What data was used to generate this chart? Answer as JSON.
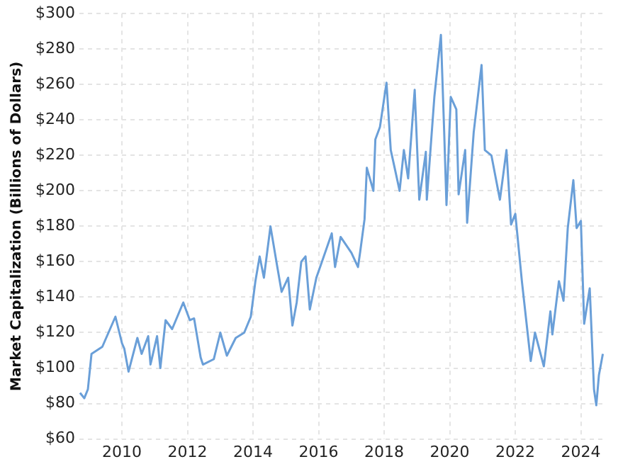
{
  "chart_data": {
    "type": "line",
    "ylabel": "Market Capitalization (Billions of Dollars)",
    "xlim": [
      2008.7,
      2024.7
    ],
    "xticks": [
      2010,
      2012,
      2014,
      2016,
      2018,
      2020,
      2022,
      2024
    ],
    "ylim": [
      60,
      300
    ],
    "yticks": [
      {
        "value": 60,
        "label": "$60"
      },
      {
        "value": 80,
        "label": "$80"
      },
      {
        "value": 100,
        "label": "$100"
      },
      {
        "value": 120,
        "label": "$120"
      },
      {
        "value": 140,
        "label": "$140"
      },
      {
        "value": 160,
        "label": "$160"
      },
      {
        "value": 180,
        "label": "$180"
      },
      {
        "value": 200,
        "label": "$200"
      },
      {
        "value": 220,
        "label": "$220"
      },
      {
        "value": 240,
        "label": "$240"
      },
      {
        "value": 260,
        "label": "$260"
      },
      {
        "value": 280,
        "label": "$280"
      },
      {
        "value": 300,
        "label": "$300"
      }
    ],
    "grid": true,
    "legend": false,
    "marker": "none",
    "line_style": "solid",
    "series": [
      {
        "color": "#6a9fd8",
        "x": [
          2008.72,
          2008.85,
          2008.96,
          2009.07,
          2009.4,
          2009.8,
          2010.0,
          2010.07,
          2010.2,
          2010.47,
          2010.6,
          2010.8,
          2010.87,
          2011.07,
          2011.17,
          2011.33,
          2011.53,
          2011.87,
          2012.07,
          2012.2,
          2012.4,
          2012.47,
          2012.8,
          2013.0,
          2013.2,
          2013.47,
          2013.73,
          2013.93,
          2014.07,
          2014.2,
          2014.33,
          2014.53,
          2014.73,
          2014.87,
          2015.07,
          2015.2,
          2015.33,
          2015.47,
          2015.6,
          2015.73,
          2015.93,
          2016.1,
          2016.4,
          2016.5,
          2016.67,
          2017.0,
          2017.2,
          2017.27,
          2017.4,
          2017.47,
          2017.67,
          2017.73,
          2017.87,
          2018.07,
          2018.2,
          2018.33,
          2018.47,
          2018.6,
          2018.73,
          2018.93,
          2019.07,
          2019.27,
          2019.3,
          2019.53,
          2019.73,
          2019.83,
          2019.9,
          2020.03,
          2020.2,
          2020.27,
          2020.47,
          2020.53,
          2020.73,
          2020.97,
          2021.07,
          2021.27,
          2021.53,
          2021.73,
          2021.87,
          2022.0,
          2022.2,
          2022.47,
          2022.6,
          2022.87,
          2023.07,
          2023.13,
          2023.33,
          2023.47,
          2023.6,
          2023.77,
          2023.87,
          2024.0,
          2024.1,
          2024.27,
          2024.4,
          2024.47,
          2024.55,
          2024.67
        ],
        "values": [
          86,
          83,
          88,
          108,
          112,
          129,
          114,
          111,
          98,
          117,
          108,
          118,
          102,
          118,
          100,
          127,
          122,
          137,
          127,
          128,
          106,
          102,
          105,
          120,
          107,
          117,
          120,
          129,
          149,
          163,
          151,
          180,
          158,
          143,
          151,
          124,
          137,
          160,
          163,
          133,
          151,
          160,
          176,
          157,
          174,
          165,
          157,
          166,
          184,
          213,
          200,
          229,
          236,
          261,
          223,
          212,
          200,
          223,
          207,
          257,
          195,
          222,
          195,
          253,
          288,
          233,
          192,
          253,
          246,
          198,
          223,
          182,
          233,
          271,
          223,
          220,
          195,
          223,
          181,
          187,
          149,
          104,
          120,
          101,
          132,
          119,
          149,
          138,
          179,
          206,
          179,
          183,
          125,
          145,
          88,
          79,
          96,
          108
        ]
      }
    ]
  }
}
